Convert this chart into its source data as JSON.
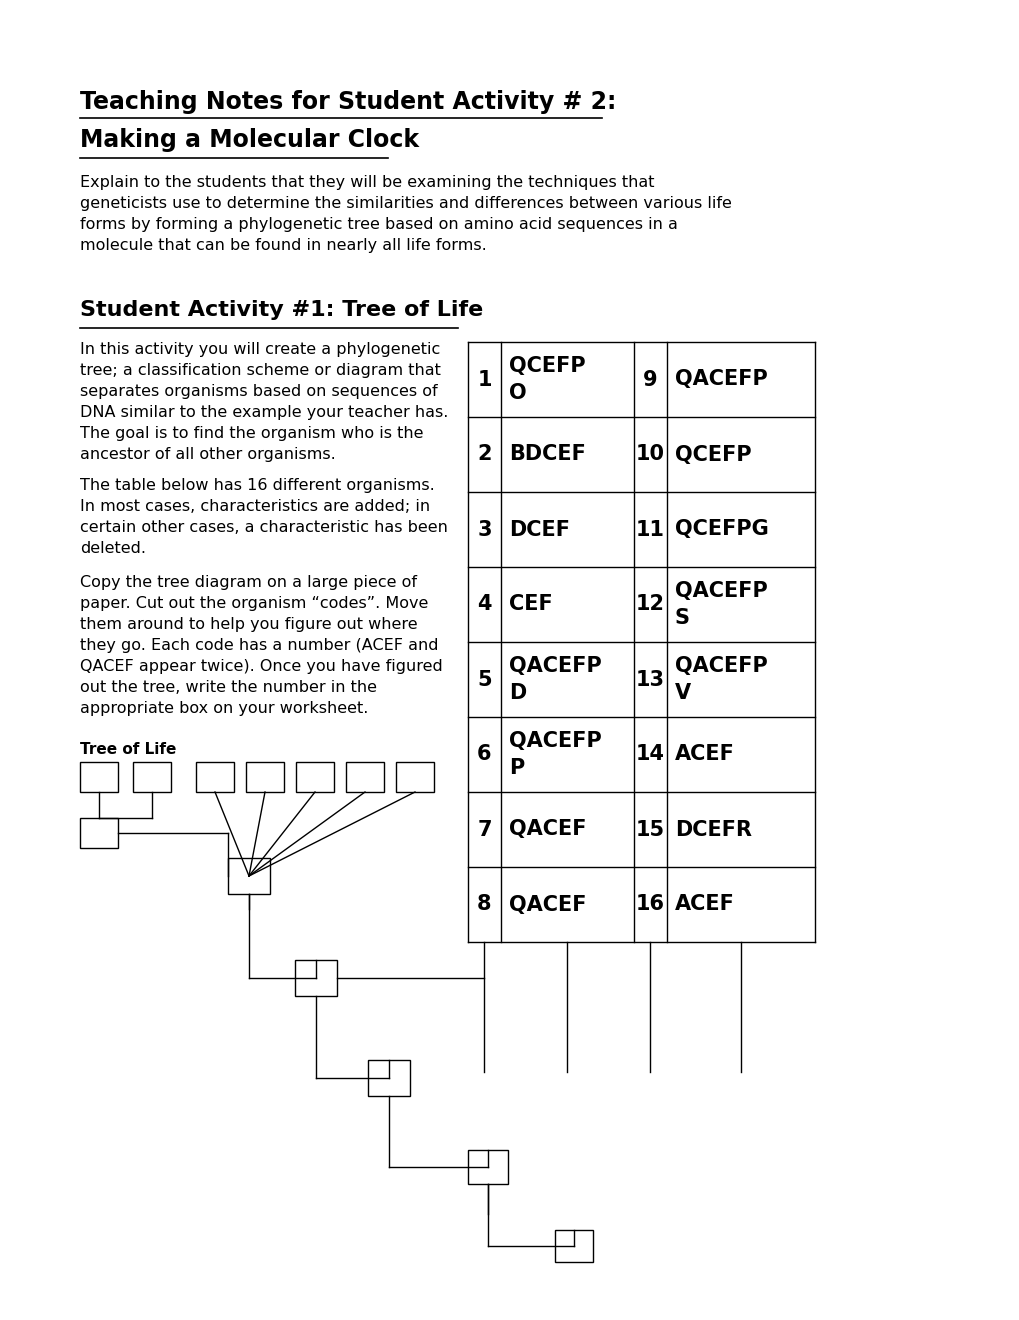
{
  "title_line1": "Teaching Notes for Student Activity # 2:",
  "title_line2": "Making a Molecular Clock",
  "intro_text": "Explain to the students that they will be examining the techniques that\ngeneticists use to determine the similarities and differences between various life\nforms by forming a phylogenetic tree based on amino acid sequences in a\nmolecule that can be found in nearly all life forms.",
  "section_title": "Student Activity #1: Tree of Life",
  "section_text1": "In this activity you will create a phylogenetic\ntree; a classification scheme or diagram that\nseparates organisms based on sequences of\nDNA similar to the example your teacher has.\nThe goal is to find the organism who is the\nancestor of all other organisms.",
  "section_text2": "The table below has 16 different organisms.\nIn most cases, characteristics are added; in\ncertain other cases, a characteristic has been\ndeleted.",
  "section_text3": "Copy the tree diagram on a large piece of\npaper. Cut out the organism “codes”. Move\nthem around to help you figure out where\nthey go. Each code has a number (ACEF and\nQACEF appear twice). Once you have figured\nout the tree, write the number in the\nappropriate box on your worksheet.",
  "tree_label": "Tree of Life",
  "table_data": [
    [
      "1",
      "QCEFP\nO",
      "9",
      "QACEFP"
    ],
    [
      "2",
      "BDCEF",
      "10",
      "QCEFP"
    ],
    [
      "3",
      "DCEF",
      "11",
      "QCEFPG"
    ],
    [
      "4",
      "CEF",
      "12",
      "QACEFP\nS"
    ],
    [
      "5",
      "QACEFP\nD",
      "13",
      "QACEFP\nV"
    ],
    [
      "6",
      "QACEFP\nP",
      "14",
      "ACEF"
    ],
    [
      "7",
      "QACEF",
      "15",
      "DCEFR"
    ],
    [
      "8",
      "QACEF",
      "16",
      "ACEF"
    ]
  ],
  "bg_color": "#ffffff",
  "text_color": "#000000"
}
